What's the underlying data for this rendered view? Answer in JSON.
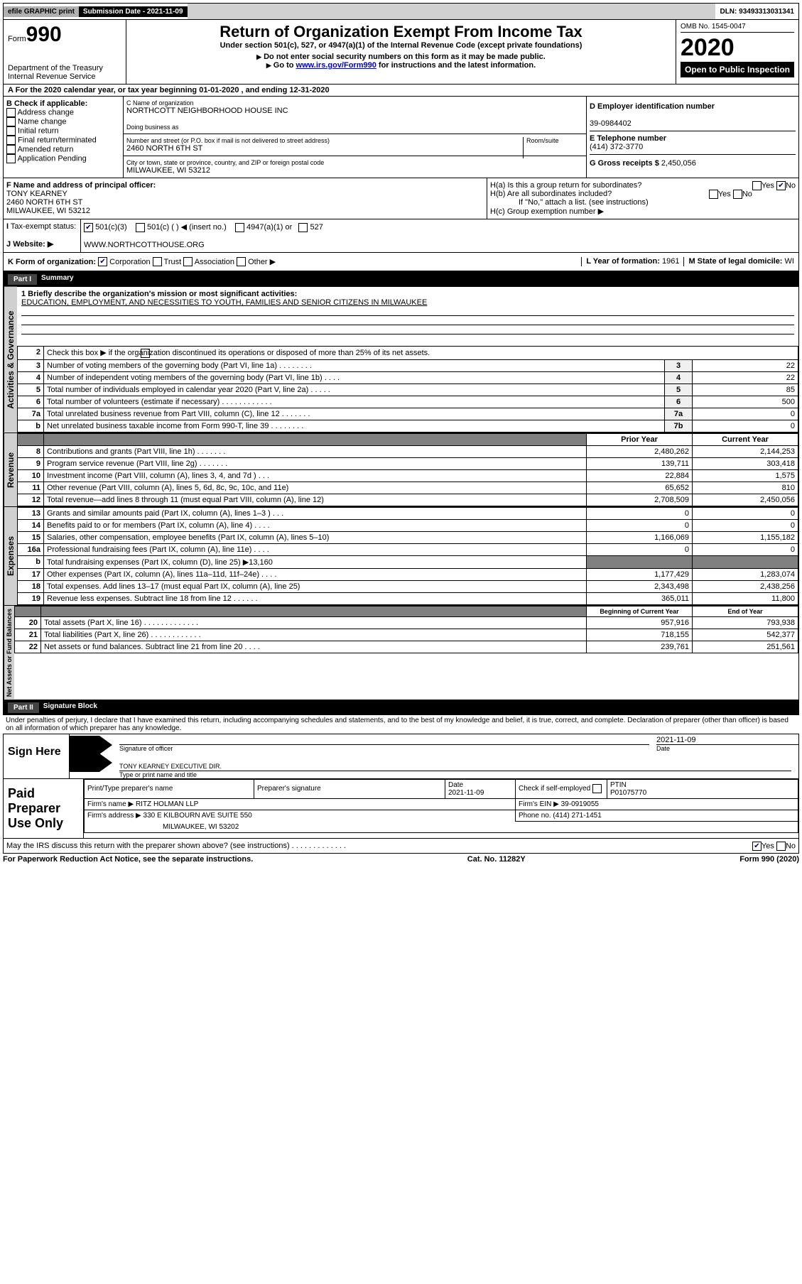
{
  "topbar": {
    "efile": "efile GRAPHIC print",
    "submission": "Submission Date - 2021-11-09",
    "dln": "DLN: 93493313031341"
  },
  "header": {
    "form_label": "Form",
    "form_num": "990",
    "dept": "Department of the Treasury\nInternal Revenue Service",
    "title": "Return of Organization Exempt From Income Tax",
    "subtitle": "Under section 501(c), 527, or 4947(a)(1) of the Internal Revenue Code (except private foundations)",
    "note1": "Do not enter social security numbers on this form as it may be made public.",
    "note2_pre": "Go to ",
    "note2_link": "www.irs.gov/Form990",
    "note2_post": " for instructions and the latest information.",
    "omb": "OMB No. 1545-0047",
    "year": "2020",
    "open": "Open to Public Inspection"
  },
  "period": "For the 2020 calendar year, or tax year beginning 01-01-2020   , and ending 12-31-2020",
  "boxB": {
    "label": "B Check if applicable:",
    "items": [
      "Address change",
      "Name change",
      "Initial return",
      "Final return/terminated",
      "Amended return",
      "Application Pending"
    ]
  },
  "boxC": {
    "name_label": "C Name of organization",
    "name": "NORTHCOTT NEIGHBORHOOD HOUSE INC",
    "dba_label": "Doing business as",
    "addr_label": "Number and street (or P.O. box if mail is not delivered to street address)",
    "room": "Room/suite",
    "addr": "2460 NORTH 6TH ST",
    "city_label": "City or town, state or province, country, and ZIP or foreign postal code",
    "city": "MILWAUKEE, WI  53212"
  },
  "boxD": {
    "ein_label": "D Employer identification number",
    "ein": "39-0984402",
    "phone_label": "E Telephone number",
    "phone": "(414) 372-3770",
    "gross_label": "G Gross receipts $",
    "gross": "2,450,056"
  },
  "boxF": {
    "label": "F  Name and address of principal officer:",
    "name": "TONY KEARNEY",
    "addr1": "2460 NORTH 6TH ST",
    "addr2": "MILWAUKEE, WI  53212"
  },
  "boxH": {
    "a": "H(a)  Is this a group return for subordinates?",
    "b": "H(b)  Are all subordinates included?",
    "b_note": "If \"No,\" attach a list. (see instructions)",
    "c": "H(c)  Group exemption number ▶"
  },
  "taxrow": {
    "label": "Tax-exempt status:",
    "c1": "501(c)(3)",
    "c2": "501(c) (  ) ◀ (insert no.)",
    "c3": "4947(a)(1) or",
    "c4": "527"
  },
  "website": {
    "label": "Website: ▶",
    "val": "WWW.NORTHCOTTHOUSE.ORG"
  },
  "kform": {
    "label": "K Form of organization:",
    "opts": [
      "Corporation",
      "Trust",
      "Association",
      "Other ▶"
    ],
    "year_label": "L Year of formation:",
    "year": "1961",
    "state_label": "M State of legal domicile:",
    "state": "WI"
  },
  "part1": {
    "label": "Part I",
    "title": "Summary"
  },
  "section1": {
    "mission_label": "1  Briefly describe the organization's mission or most significant activities:",
    "mission": "EDUCATION, EMPLOYMENT, AND NECESSITIES TO YOUTH, FAMILIES AND SENIOR CITIZENS IN MILWAUKEE",
    "line2": "Check this box ▶       if the organization discontinued its operations or disposed of more than 25% of its net assets.",
    "rows": [
      {
        "n": "3",
        "t": "Number of voting members of the governing body (Part VI, line 1a)  .    .    .    .    .    .    .    .",
        "b": "3",
        "v": "22"
      },
      {
        "n": "4",
        "t": "Number of independent voting members of the governing body (Part VI, line 1b)   .    .    .    .",
        "b": "4",
        "v": "22"
      },
      {
        "n": "5",
        "t": "Total number of individuals employed in calendar year 2020 (Part V, line 2a)   .    .    .    .    .",
        "b": "5",
        "v": "85"
      },
      {
        "n": "6",
        "t": "Total number of volunteers (estimate if necessary)   .    .    .    .    .    .    .    .    .    .    .    .",
        "b": "6",
        "v": "500"
      },
      {
        "n": "7a",
        "t": "Total unrelated business revenue from Part VIII, column (C), line 12   .    .    .    .    .    .    .",
        "b": "7a",
        "v": "0"
      },
      {
        "n": "b",
        "t": "Net unrelated business taxable income from Form 990-T, line 39    .    .    .    .    .    .    .    .",
        "b": "7b",
        "v": "0"
      }
    ],
    "side": "Activities & Governance"
  },
  "revenue": {
    "side": "Revenue",
    "header": {
      "py": "Prior Year",
      "cy": "Current Year"
    },
    "rows": [
      {
        "n": "8",
        "t": "Contributions and grants (Part VIII, line 1h)   .    .    .    .    .    .    .",
        "py": "2,480,262",
        "cy": "2,144,253"
      },
      {
        "n": "9",
        "t": "Program service revenue (Part VIII, line 2g)   .    .    .    .    .    .    .",
        "py": "139,711",
        "cy": "303,418"
      },
      {
        "n": "10",
        "t": "Investment income (Part VIII, column (A), lines 3, 4, and 7d )   .    .    .",
        "py": "22,884",
        "cy": "1,575"
      },
      {
        "n": "11",
        "t": "Other revenue (Part VIII, column (A), lines 5, 6d, 8c, 9c, 10c, and 11e)",
        "py": "65,652",
        "cy": "810"
      },
      {
        "n": "12",
        "t": "Total revenue—add lines 8 through 11 (must equal Part VIII, column (A), line 12)",
        "py": "2,708,509",
        "cy": "2,450,056"
      }
    ]
  },
  "expenses": {
    "side": "Expenses",
    "rows": [
      {
        "n": "13",
        "t": "Grants and similar amounts paid (Part IX, column (A), lines 1–3 )   .    .    .",
        "py": "0",
        "cy": "0"
      },
      {
        "n": "14",
        "t": "Benefits paid to or for members (Part IX, column (A), line 4)   .    .    .    .",
        "py": "0",
        "cy": "0"
      },
      {
        "n": "15",
        "t": "Salaries, other compensation, employee benefits (Part IX, column (A), lines 5–10)",
        "py": "1,166,069",
        "cy": "1,155,182"
      },
      {
        "n": "16a",
        "t": "Professional fundraising fees (Part IX, column (A), line 11e)   .    .    .    .",
        "py": "0",
        "cy": "0"
      },
      {
        "n": "b",
        "t": "Total fundraising expenses (Part IX, column (D), line 25) ▶13,160",
        "py": "",
        "cy": "",
        "grey": true
      },
      {
        "n": "17",
        "t": "Other expenses (Part IX, column (A), lines 11a–11d, 11f–24e)   .    .    .    .",
        "py": "1,177,429",
        "cy": "1,283,074"
      },
      {
        "n": "18",
        "t": "Total expenses. Add lines 13–17 (must equal Part IX, column (A), line 25)",
        "py": "2,343,498",
        "cy": "2,438,256"
      },
      {
        "n": "19",
        "t": "Revenue less expenses. Subtract line 18 from line 12   .    .    .    .    .    .",
        "py": "365,011",
        "cy": "11,800"
      }
    ]
  },
  "net": {
    "side": "Net Assets or Fund Balances",
    "header": {
      "py": "Beginning of Current Year",
      "cy": "End of Year"
    },
    "rows": [
      {
        "n": "20",
        "t": "Total assets (Part X, line 16)   .    .    .    .    .    .    .    .    .    .    .    .    .",
        "py": "957,916",
        "cy": "793,938"
      },
      {
        "n": "21",
        "t": "Total liabilities (Part X, line 26)   .    .    .    .    .    .    .    .    .    .    .    .",
        "py": "718,155",
        "cy": "542,377"
      },
      {
        "n": "22",
        "t": "Net assets or fund balances. Subtract line 21 from line 20   .    .    .    .",
        "py": "239,761",
        "cy": "251,561"
      }
    ]
  },
  "part2": {
    "label": "Part II",
    "title": "Signature Block"
  },
  "sig": {
    "penalty": "Under penalties of perjury, I declare that I have examined this return, including accompanying schedules and statements, and to the best of my knowledge and belief, it is true, correct, and complete. Declaration of preparer (other than officer) is based on all information of which preparer has any knowledge.",
    "sign_here": "Sign Here",
    "officer": "Signature of officer",
    "date_label": "Date",
    "date": "2021-11-09",
    "name": "TONY KEARNEY  EXECUTIVE DIR.",
    "name_label": "Type or print name and title"
  },
  "prep": {
    "label": "Paid Preparer Use Only",
    "h1": "Print/Type preparer's name",
    "h2": "Preparer's signature",
    "h3": "Date",
    "date": "2021-11-09",
    "h4": "Check        if self-employed",
    "h5": "PTIN",
    "ptin": "P01075770",
    "firm_label": "Firm's name    ▶",
    "firm": "RITZ HOLMAN LLP",
    "ein_label": "Firm's EIN ▶",
    "ein": "39-0919055",
    "addr_label": "Firm's address ▶",
    "addr1": "330 E KILBOURN AVE SUITE 550",
    "addr2": "MILWAUKEE, WI  53202",
    "phone_label": "Phone no.",
    "phone": "(414) 271-1451",
    "irs_q": "May the IRS discuss this return with the preparer shown above? (see instructions)   .    .    .    .    .    .    .    .    .    .    .    .    ."
  },
  "footer": {
    "pra": "For Paperwork Reduction Act Notice, see the separate instructions.",
    "cat": "Cat. No. 11282Y",
    "form": "Form 990 (2020)"
  }
}
